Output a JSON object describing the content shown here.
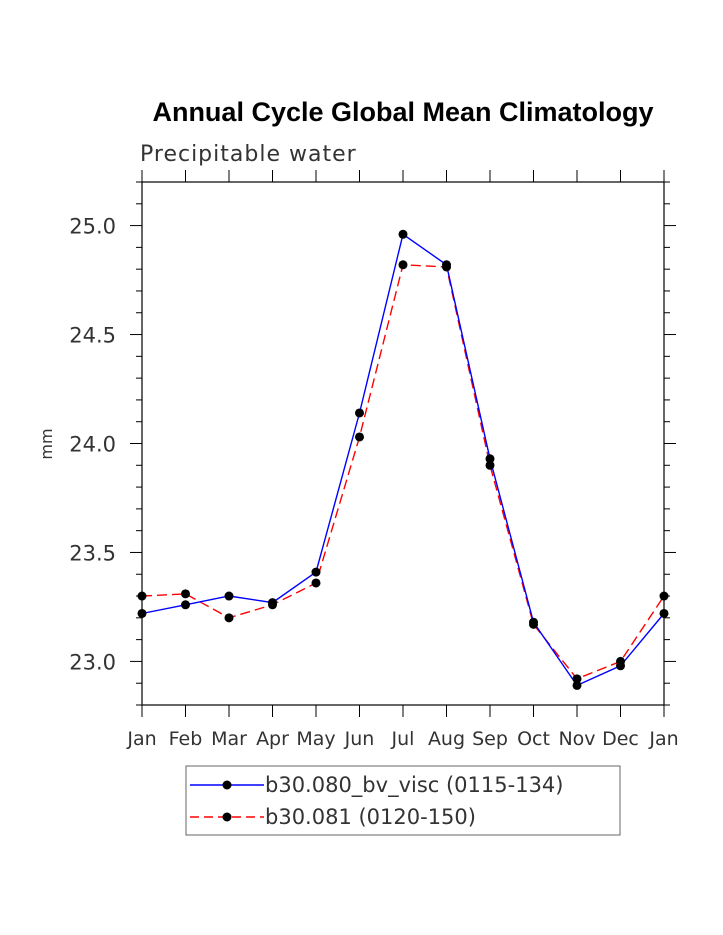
{
  "chart_data": {
    "type": "line",
    "title": "Annual Cycle Global Mean Climatology",
    "subtitle": "Precipitable water",
    "xlabel": "",
    "ylabel": "mm",
    "categories": [
      "Jan",
      "Feb",
      "Mar",
      "Apr",
      "May",
      "Jun",
      "Jul",
      "Aug",
      "Sep",
      "Oct",
      "Nov",
      "Dec",
      "Jan"
    ],
    "ylim": [
      22.8,
      25.2
    ],
    "yticks": [
      23.0,
      23.5,
      24.0,
      24.5,
      25.0
    ],
    "ytick_labels": [
      "23.0",
      "23.5",
      "24.0",
      "24.5",
      "25.0"
    ],
    "grid": false,
    "legend_position": "bottom",
    "series": [
      {
        "name": "b30.080_bv_visc (0115-134)",
        "color": "#0000ff",
        "dashed": false,
        "values": [
          23.22,
          23.26,
          23.3,
          23.27,
          23.41,
          24.14,
          24.96,
          24.82,
          23.93,
          23.18,
          22.89,
          22.98,
          23.22
        ]
      },
      {
        "name": "b30.081 (0120-150)",
        "color": "#ff0000",
        "dashed": true,
        "values": [
          23.3,
          23.31,
          23.2,
          23.26,
          23.36,
          24.03,
          24.82,
          24.81,
          23.9,
          23.17,
          22.92,
          23.0,
          23.3
        ]
      }
    ]
  }
}
